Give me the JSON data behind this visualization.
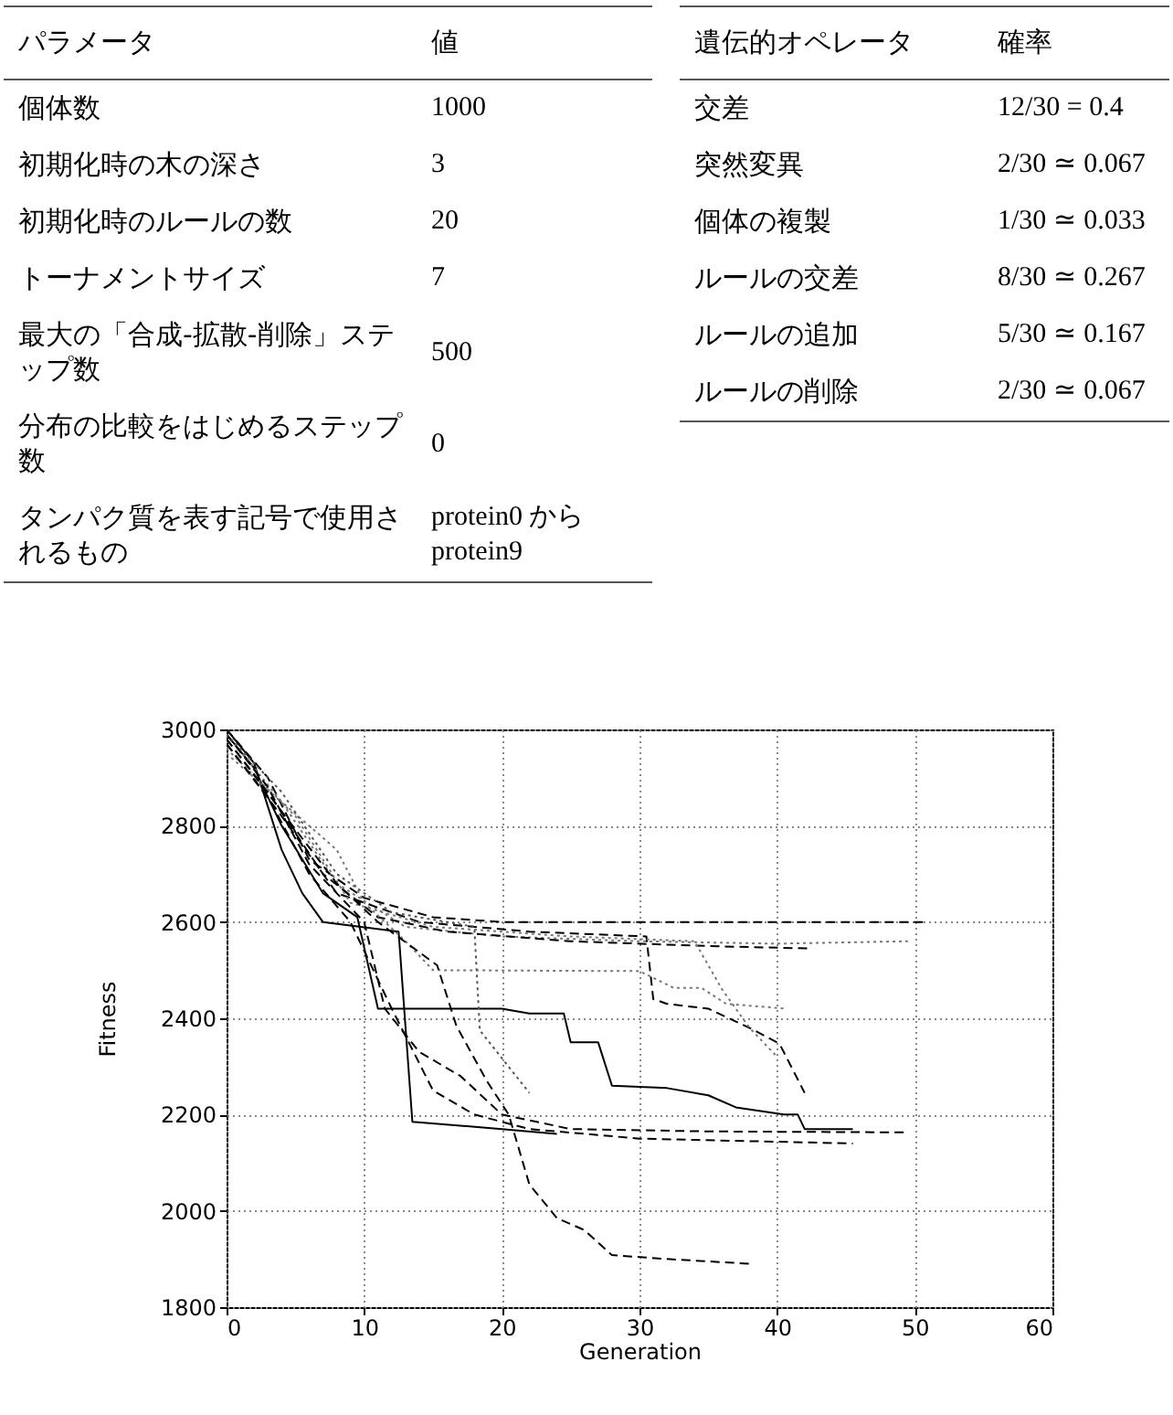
{
  "chart_data": [
    {
      "type": "other",
      "annotations": [
        "パラメータ",
        "値",
        "個体数",
        "1000",
        "初期化時の木の深さ",
        "3",
        "初期化時のルールの数",
        "20",
        "トーナメントサイズ",
        "7",
        "最大の「合成-拡散-削除」ステップ数",
        "500",
        "分布の比較をはじめるステップ数",
        "0",
        "タンパク質を表す記号で使用されるもの",
        "protein0 から protein9"
      ]
    },
    {
      "type": "other",
      "annotations": [
        "遺伝的オペレータ",
        "確率",
        "交差",
        "12/30 = 0.4",
        "突然変異",
        "2/30 ≃ 0.067",
        "個体の複製",
        "1/30 ≃ 0.033",
        "ルールの交差",
        "8/30 ≃ 0.267",
        "ルールの追加",
        "5/30 ≃ 0.167",
        "ルールの削除",
        "2/30 ≃ 0.067"
      ]
    },
    {
      "type": "line",
      "xlabel": "Generation",
      "ylabel": "Fitness",
      "xlim": [
        0,
        60
      ],
      "xticks": [
        0,
        10,
        20,
        30,
        40,
        50,
        60
      ],
      "ylim": [
        1800,
        3000
      ],
      "yticks": [
        1800,
        2000,
        2200,
        2400,
        2600,
        2800,
        3000
      ],
      "grid": true,
      "series": [
        {
          "color": "#000000",
          "line_style": "solid",
          "x": [
            0,
            2,
            4,
            5.5,
            7,
            12.5,
            13.5,
            20,
            24
          ],
          "values": [
            3000,
            2930,
            2750,
            2660,
            2600,
            2580,
            2185,
            2170,
            2160
          ]
        },
        {
          "color": "#000000",
          "line_style": "solid",
          "x": [
            0,
            2,
            4,
            7,
            9.5,
            11,
            20,
            22,
            24.5,
            25,
            27,
            28,
            32,
            35,
            37,
            40.5,
            41.5,
            42,
            45.5
          ],
          "values": [
            2990,
            2920,
            2800,
            2660,
            2610,
            2420,
            2420,
            2410,
            2410,
            2350,
            2350,
            2260,
            2255,
            2240,
            2215,
            2200,
            2200,
            2170,
            2170
          ]
        },
        {
          "color": "#000000",
          "line_style": "dashed",
          "x": [
            0,
            3,
            6,
            10,
            15,
            20,
            51
          ],
          "values": [
            3000,
            2900,
            2730,
            2650,
            2610,
            2600,
            2600
          ]
        },
        {
          "color": "#777777",
          "line_style": "dotted",
          "x": [
            0,
            4,
            8,
            13,
            20,
            30,
            40,
            49.5
          ],
          "values": [
            2990,
            2850,
            2680,
            2590,
            2570,
            2560,
            2555,
            2560
          ]
        },
        {
          "color": "#000000",
          "line_style": "dashed",
          "x": [
            0,
            3,
            7,
            11,
            16,
            25,
            35,
            42.5
          ],
          "values": [
            2980,
            2870,
            2700,
            2610,
            2580,
            2560,
            2550,
            2545
          ]
        },
        {
          "color": "#000000",
          "line_style": "dashed",
          "x": [
            0,
            4,
            8,
            14,
            22,
            30.5,
            31,
            32,
            35,
            38,
            40,
            40.3,
            42
          ],
          "values": [
            2970,
            2820,
            2660,
            2600,
            2580,
            2570,
            2440,
            2430,
            2420,
            2380,
            2350,
            2340,
            2245
          ]
        },
        {
          "color": "#777777",
          "line_style": "dotted",
          "x": [
            0,
            5,
            9,
            15,
            25,
            34,
            36,
            38,
            40
          ],
          "values": [
            2960,
            2820,
            2640,
            2590,
            2570,
            2560,
            2460,
            2380,
            2320
          ]
        },
        {
          "color": "#777777",
          "line_style": "dotted",
          "x": [
            0,
            4,
            8,
            10,
            13,
            15,
            30,
            32.5,
            34.5,
            36.3,
            40.7
          ],
          "values": [
            2950,
            2850,
            2750,
            2640,
            2560,
            2500,
            2498,
            2463,
            2463,
            2430,
            2420
          ]
        },
        {
          "color": "#000000",
          "line_style": "dashed",
          "x": [
            0,
            3,
            6,
            10,
            11.5,
            14,
            17,
            20,
            25,
            35,
            49.5
          ],
          "values": [
            2990,
            2880,
            2720,
            2600,
            2420,
            2330,
            2280,
            2200,
            2170,
            2165,
            2163
          ]
        },
        {
          "color": "#000000",
          "line_style": "dashed",
          "x": [
            0,
            3,
            6,
            9,
            12,
            15,
            18,
            22,
            30,
            45.5
          ],
          "values": [
            2970,
            2860,
            2700,
            2600,
            2420,
            2250,
            2200,
            2170,
            2150,
            2140
          ]
        },
        {
          "color": "#000000",
          "line_style": "dashed",
          "x": [
            0,
            4,
            8,
            11,
            15.3,
            16.7,
            18.9,
            20.5,
            22,
            24,
            26,
            28,
            32,
            38
          ],
          "values": [
            2980,
            2830,
            2680,
            2600,
            2510,
            2384,
            2270,
            2200,
            2055,
            1985,
            1960,
            1908,
            1900,
            1890
          ]
        },
        {
          "color": "#555555",
          "line_style": "dotted",
          "x": [
            0,
            4,
            8,
            12,
            18,
            18.4,
            22
          ],
          "values": [
            2990,
            2870,
            2700,
            2620,
            2590,
            2375,
            2245
          ]
        }
      ]
    }
  ]
}
